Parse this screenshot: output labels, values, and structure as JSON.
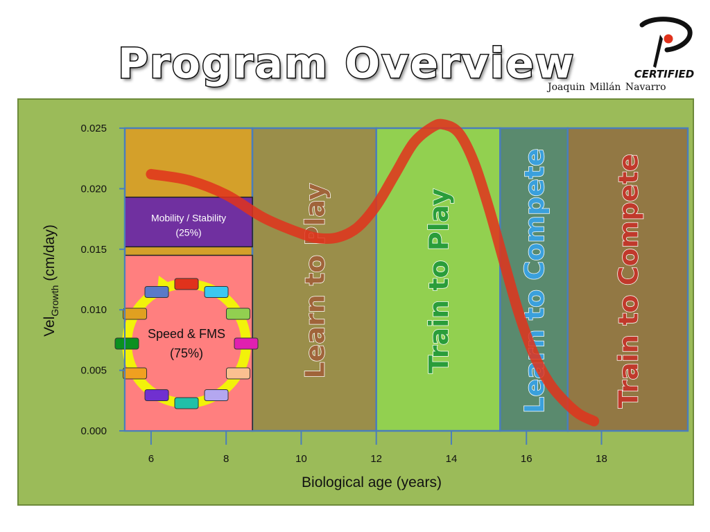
{
  "header": {
    "title": "Program Overview",
    "author": "Joaquin  Millán  Navarro",
    "logo_text": "CERTIFIED"
  },
  "colors": {
    "frame_bg": "#9bbb59",
    "curve": "#e0321c",
    "axis": "#4a7ebb"
  },
  "chart_data": {
    "type": "line",
    "xlabel": "Biological age (years)",
    "ylabel_prefix": "Vel",
    "ylabel_sub": "Growth",
    "ylabel_suffix": " (cm/day)",
    "xlim": [
      5.3,
      20.3
    ],
    "ylim": [
      0,
      0.025
    ],
    "x_ticks": [
      6,
      8,
      10,
      12,
      14,
      16,
      18
    ],
    "x_tick_labels": [
      "6",
      "8",
      "10",
      "12",
      "14",
      "16",
      "18"
    ],
    "y_ticks": [
      0,
      0.005,
      0.01,
      0.015,
      0.02,
      0.025
    ],
    "y_tick_labels": [
      "0.000",
      "0.005",
      "0.010",
      "0.015",
      "0.020",
      "0.025"
    ],
    "stages": [
      {
        "label": "",
        "x_start": 5.3,
        "x_end": 8.7,
        "color": "#d4a02a"
      },
      {
        "label": "Learn to Play",
        "x_start": 8.7,
        "x_end": 12.0,
        "color": "#9a8e4a",
        "text_color": "#a0643a"
      },
      {
        "label": "Train to Play",
        "x_start": 12.0,
        "x_end": 15.3,
        "color": "#92d050",
        "text_color": "#2a9d3a"
      },
      {
        "label": "Learn to Compete",
        "x_start": 15.3,
        "x_end": 17.1,
        "color": "#5a8a6e",
        "text_color": "#3aa0dc"
      },
      {
        "label": "Train to Compete",
        "x_start": 17.1,
        "x_end": 20.3,
        "color": "#927844",
        "text_color": "#c0392b"
      }
    ],
    "sub_blocks": [
      {
        "label": "Mobility / Stability",
        "sublabel": "(25%)",
        "y_start": 0.0152,
        "y_end": 0.0193,
        "color": "#7030a0"
      },
      {
        "label": "Speed & FMS",
        "sublabel": "(75%)",
        "y_start": 0,
        "y_end": 0.0145,
        "color": "#ff7f7f"
      }
    ],
    "series": [
      {
        "x": [
          6.0,
          7.0,
          8.0,
          9.0,
          10.0,
          10.5,
          11.0,
          11.5,
          12.0,
          12.5,
          13.0,
          13.5,
          13.8,
          14.2,
          14.6,
          15.0,
          15.4,
          15.8,
          16.2,
          16.6,
          17.0,
          17.4,
          17.8
        ],
        "y": [
          0.0212,
          0.0207,
          0.0195,
          0.0176,
          0.0163,
          0.0159,
          0.016,
          0.0168,
          0.0186,
          0.0212,
          0.0238,
          0.0251,
          0.0253,
          0.0246,
          0.0222,
          0.0184,
          0.014,
          0.0097,
          0.0063,
          0.004,
          0.0025,
          0.0014,
          0.0008
        ]
      }
    ]
  }
}
